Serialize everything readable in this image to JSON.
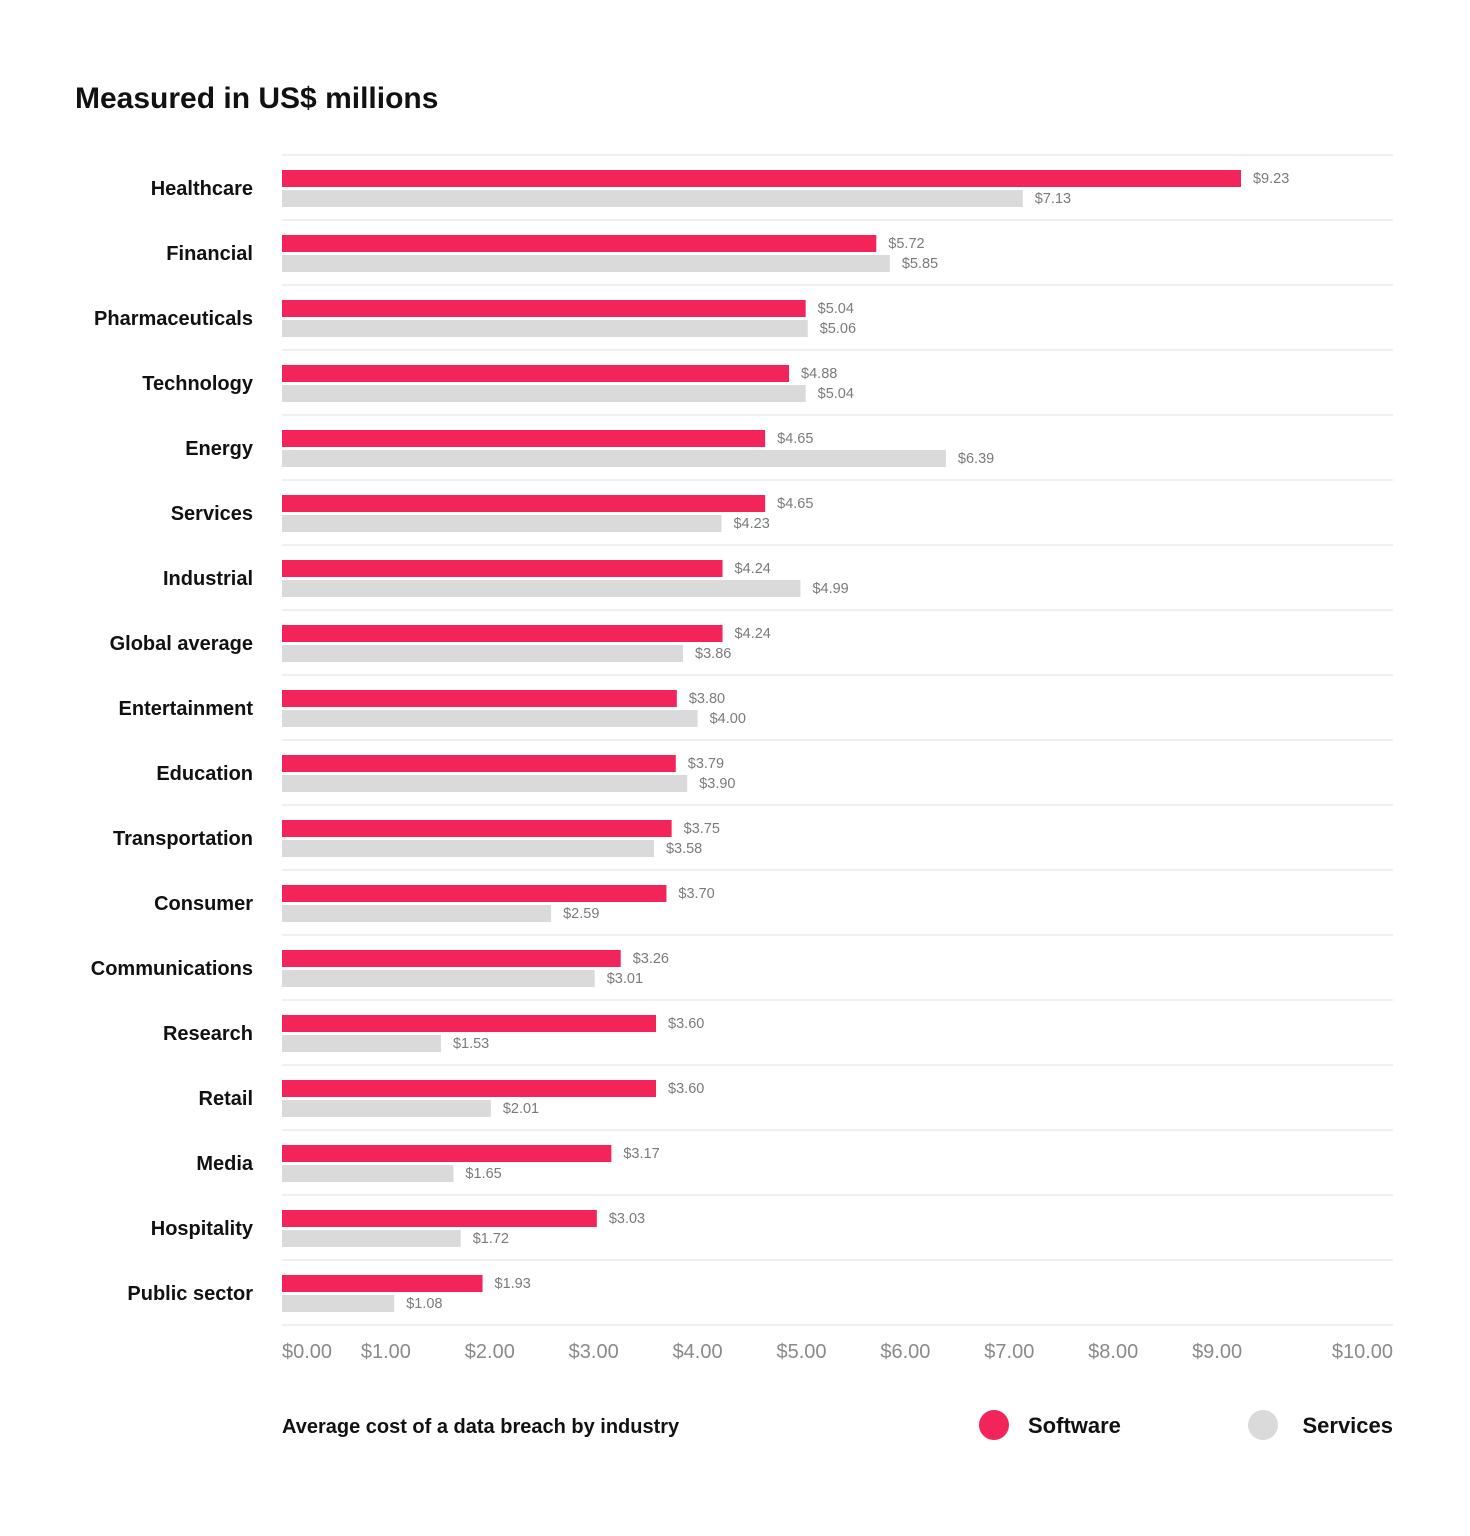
{
  "chart_data": {
    "type": "bar",
    "orientation": "horizontal",
    "title": "Measured in US$ millions",
    "caption": "Average cost of a data breach by industry",
    "categories": [
      "Healthcare",
      "Financial",
      "Pharmaceuticals",
      "Technology",
      "Energy",
      "Services",
      "Industrial",
      "Global average",
      "Entertainment",
      "Education",
      "Transportation",
      "Consumer",
      "Communications",
      "Research",
      "Retail",
      "Media",
      "Hospitality",
      "Public sector"
    ],
    "series": [
      {
        "name": "Software",
        "color": "#f2245a",
        "values": [
          9.23,
          5.72,
          5.04,
          4.88,
          4.65,
          4.65,
          4.24,
          4.24,
          3.8,
          3.79,
          3.75,
          3.7,
          3.26,
          3.6,
          3.6,
          3.17,
          3.03,
          1.93
        ],
        "value_labels": [
          "$9.23",
          "$5.72",
          "$5.04",
          "$4.88",
          "$4.65",
          "$4.65",
          "$4.24",
          "$4.24",
          "$3.80",
          "$3.79",
          "$3.75",
          "$3.70",
          "$3.26",
          "$3.60",
          "$3.60",
          "$3.17",
          "$3.03",
          "$1.93"
        ]
      },
      {
        "name": "Services",
        "color": "#dadada",
        "values": [
          7.13,
          5.85,
          5.06,
          5.04,
          6.39,
          4.23,
          4.99,
          3.86,
          4.0,
          3.9,
          3.58,
          2.59,
          3.01,
          1.53,
          2.01,
          1.65,
          1.72,
          1.08
        ],
        "value_labels": [
          "$7.13",
          "$5.85",
          "$5.06",
          "$5.04",
          "$6.39",
          "$4.23",
          "$4.99",
          "$3.86",
          "$4.00",
          "$3.90",
          "$3.58",
          "$2.59",
          "$3.01",
          "$1.53",
          "$2.01",
          "$1.65",
          "$1.72",
          "$1.08"
        ]
      }
    ],
    "xlim": [
      0,
      10
    ],
    "x_ticks": [
      0,
      1,
      2,
      3,
      4,
      5,
      6,
      7,
      8,
      9,
      10
    ],
    "x_tick_labels": [
      "$0.00",
      "$1.00",
      "$2.00",
      "$3.00",
      "$4.00",
      "$5.00",
      "$6.00",
      "$7.00",
      "$8.00",
      "$9.00",
      "$10.00"
    ],
    "grid": "horizontal row separators",
    "legend_position": "bottom-right"
  }
}
